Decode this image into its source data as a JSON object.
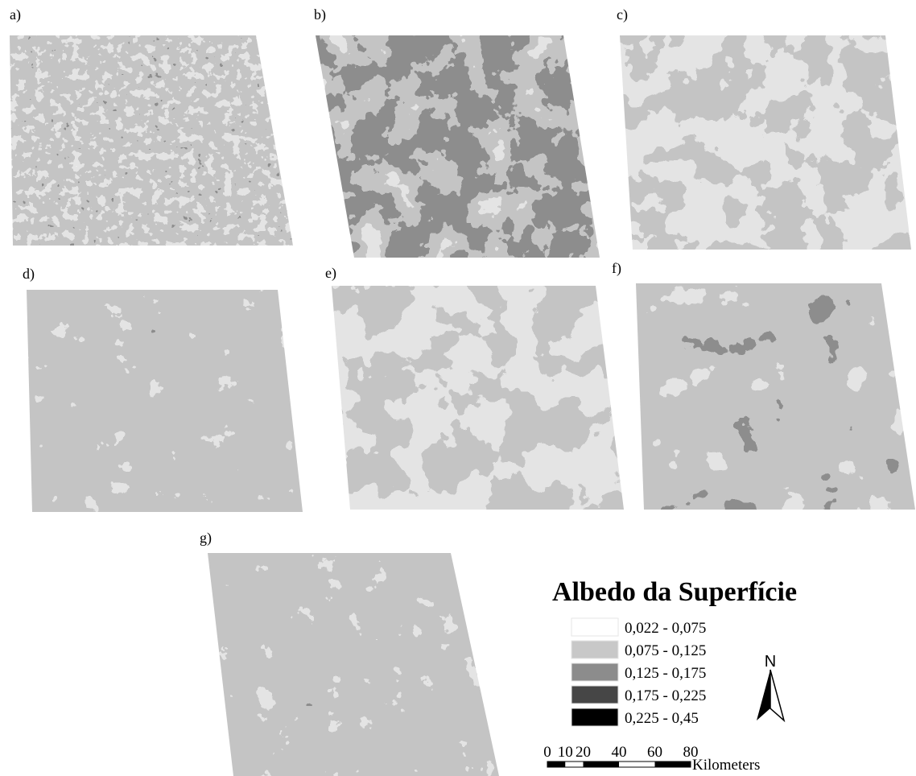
{
  "panels": [
    {
      "label": "a)"
    },
    {
      "label": "b)"
    },
    {
      "label": "c)"
    },
    {
      "label": "d)"
    },
    {
      "label": "e)"
    },
    {
      "label": "f)"
    },
    {
      "label": "g)"
    }
  ],
  "legend": {
    "title": "Albedo da Superfície",
    "items": [
      {
        "label": "0,022 - 0,075",
        "color": "#ffffff"
      },
      {
        "label": "0,075 - 0,125",
        "color": "#c8c8c8"
      },
      {
        "label": "0,125 - 0,175",
        "color": "#8c8c8c"
      },
      {
        "label": "0,175 - 0,225",
        "color": "#464646"
      },
      {
        "label": "0,225 - 0,45",
        "color": "#000000"
      }
    ]
  },
  "north_arrow": "N",
  "scale_bar": {
    "ticks": [
      0,
      10,
      20,
      40,
      60,
      80
    ],
    "unit": "Kilometers"
  }
}
